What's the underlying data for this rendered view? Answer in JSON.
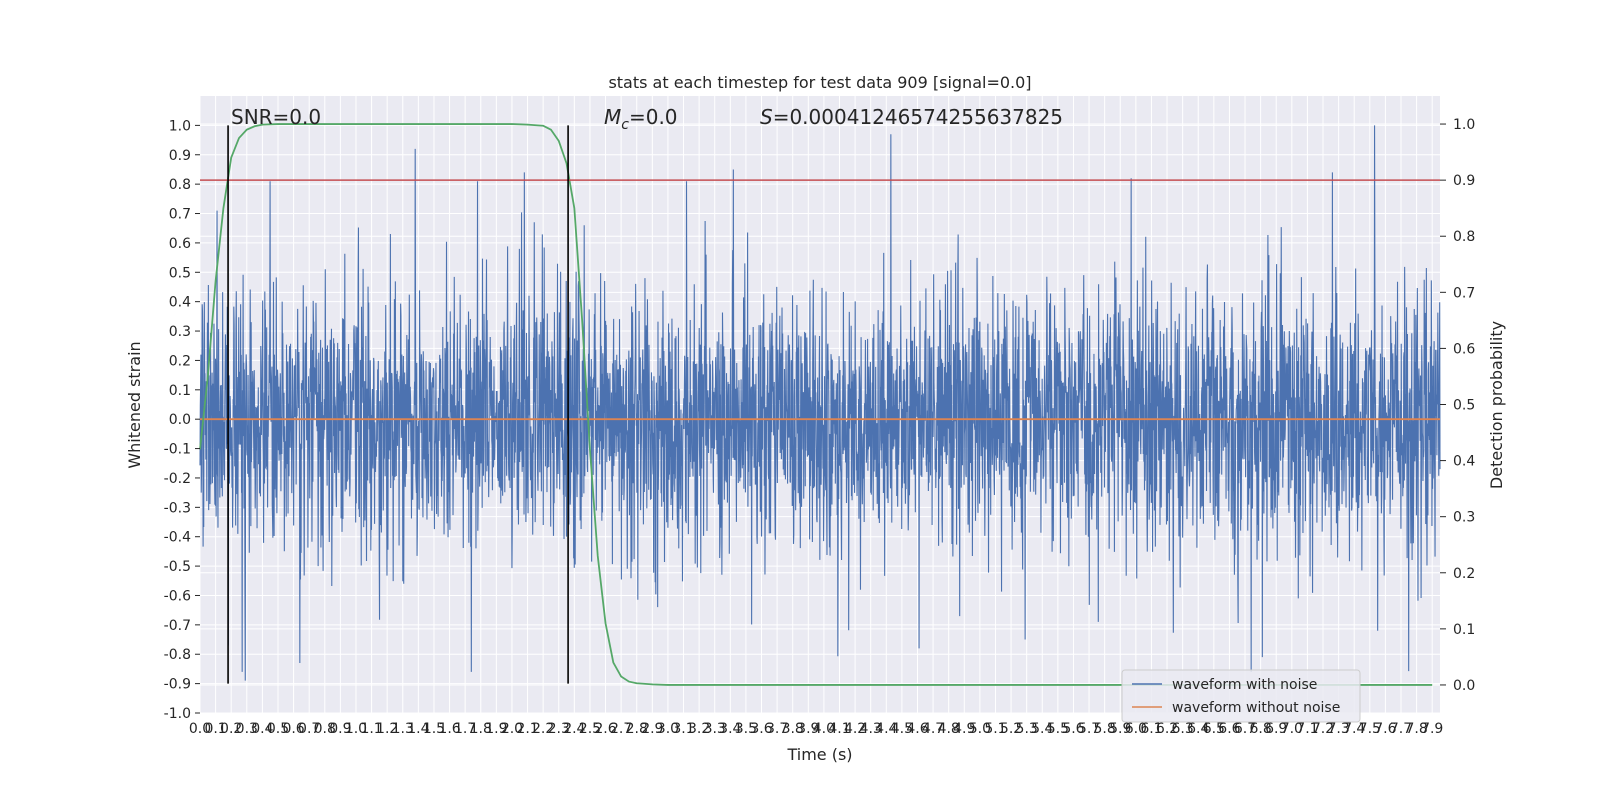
{
  "chart_data": {
    "type": "line",
    "title": "stats at each timestep for test data 909 [signal=0.0]",
    "xlabel": "Time (s)",
    "ylabel_left": "Whitened strain",
    "ylabel_right": "Detection probability",
    "xlim": [
      0.0,
      7.95
    ],
    "ylim_left": [
      -1.0,
      1.1
    ],
    "ylim_right": [
      -0.05,
      1.05
    ],
    "x_ticks": [
      "0.0",
      "0.1",
      "0.2",
      "0.3",
      "0.4",
      "0.5",
      "0.6",
      "0.7",
      "0.8",
      "0.9",
      "1.0",
      "1.1",
      "1.2",
      "1.3",
      "1.4",
      "1.5",
      "1.6",
      "1.7",
      "1.8",
      "1.9",
      "2.0",
      "2.1",
      "2.2",
      "2.3",
      "2.4",
      "2.5",
      "2.6",
      "2.7",
      "2.8",
      "2.9",
      "3.0",
      "3.1",
      "3.2",
      "3.3",
      "3.4",
      "3.5",
      "3.6",
      "3.7",
      "3.8",
      "3.9",
      "4.0",
      "4.1",
      "4.2",
      "4.3",
      "4.4",
      "4.5",
      "4.6",
      "4.7",
      "4.8",
      "4.9",
      "5.0",
      "5.1",
      "5.2",
      "5.3",
      "5.4",
      "5.5",
      "5.6",
      "5.7",
      "5.8",
      "5.9",
      "6.0",
      "6.1",
      "6.2",
      "6.3",
      "6.4",
      "6.5",
      "6.6",
      "6.7",
      "6.8",
      "6.9",
      "7.0",
      "7.1",
      "7.2",
      "7.3",
      "7.4",
      "7.5",
      "7.6",
      "7.7",
      "7.8",
      "7.9"
    ],
    "y_ticks_left": [
      "-1.0",
      "-0.9",
      "-0.8",
      "-0.7",
      "-0.6",
      "-0.5",
      "-0.4",
      "-0.3",
      "-0.2",
      "-0.1",
      "0.0",
      "0.1",
      "0.2",
      "0.3",
      "0.4",
      "0.5",
      "0.6",
      "0.7",
      "0.8",
      "0.9",
      "1.0"
    ],
    "y_ticks_right": [
      "0.0",
      "0.1",
      "0.2",
      "0.3",
      "0.4",
      "0.5",
      "0.6",
      "0.7",
      "0.8",
      "0.9",
      "1.0"
    ],
    "grid": true,
    "legend_placement": "lower-right",
    "annotations": {
      "snr": "SNR=0.0",
      "mc_symbol": "M",
      "mc_sub": "c",
      "mc_value": "=0.0",
      "s_symbol": "S",
      "s_value": "=0.00041246574255637825"
    },
    "series": [
      {
        "name": "waveform with noise",
        "color": "#4c72b0",
        "axis": "left",
        "kind": "dense-noise",
        "typical_amplitude": 0.25,
        "spikes": [
          {
            "x": 0.11,
            "y": 0.71
          },
          {
            "x": 0.18,
            "y": -0.77
          },
          {
            "x": 0.27,
            "y": -0.86
          },
          {
            "x": 0.29,
            "y": -0.89
          },
          {
            "x": 0.45,
            "y": 0.81
          },
          {
            "x": 0.64,
            "y": -0.83
          },
          {
            "x": 1.38,
            "y": 0.92
          },
          {
            "x": 1.74,
            "y": -0.86
          },
          {
            "x": 1.78,
            "y": 0.81
          },
          {
            "x": 2.08,
            "y": 0.84
          },
          {
            "x": 3.42,
            "y": 0.85
          },
          {
            "x": 3.12,
            "y": 0.81
          },
          {
            "x": 4.43,
            "y": 0.97
          },
          {
            "x": 4.61,
            "y": -0.78
          },
          {
            "x": 5.29,
            "y": -0.75
          },
          {
            "x": 5.97,
            "y": 0.82
          },
          {
            "x": 6.74,
            "y": -0.86
          },
          {
            "x": 6.81,
            "y": -0.81
          },
          {
            "x": 7.26,
            "y": 0.84
          },
          {
            "x": 7.53,
            "y": 1.0
          },
          {
            "x": 7.55,
            "y": -0.72
          }
        ]
      },
      {
        "name": "waveform without noise",
        "color": "#dd8452",
        "axis": "left",
        "x": [
          0.0,
          7.95
        ],
        "values": [
          0.0,
          0.0
        ]
      },
      {
        "color": "#55a868",
        "axis": "right",
        "x": [
          0.0,
          0.05,
          0.1,
          0.15,
          0.2,
          0.25,
          0.3,
          0.35,
          0.4,
          0.5,
          0.6,
          0.8,
          1.0,
          1.5,
          2.0,
          2.1,
          2.2,
          2.25,
          2.3,
          2.35,
          2.4,
          2.45,
          2.5,
          2.55,
          2.6,
          2.65,
          2.7,
          2.75,
          2.8,
          2.9,
          3.0,
          3.5,
          4.0,
          5.0,
          6.0,
          7.0,
          7.9
        ],
        "values": [
          0.42,
          0.55,
          0.72,
          0.85,
          0.94,
          0.975,
          0.99,
          0.996,
          0.999,
          1.0,
          1.0,
          1.0,
          1.0,
          1.0,
          1.0,
          0.999,
          0.997,
          0.99,
          0.97,
          0.93,
          0.85,
          0.65,
          0.42,
          0.23,
          0.11,
          0.04,
          0.015,
          0.006,
          0.003,
          0.001,
          0.0,
          0.0,
          0.0,
          0.0,
          0.0,
          0.0,
          0.0
        ]
      }
    ],
    "reference_lines": [
      {
        "kind": "horizontal",
        "axis": "right",
        "value": 0.9,
        "color": "#c44e52"
      },
      {
        "kind": "vertical",
        "x": 0.18,
        "ymin": -0.9,
        "ymax": 1.0,
        "color": "#000000"
      },
      {
        "kind": "vertical",
        "x": 2.36,
        "ymin": -0.9,
        "ymax": 1.0,
        "color": "#000000"
      }
    ]
  }
}
